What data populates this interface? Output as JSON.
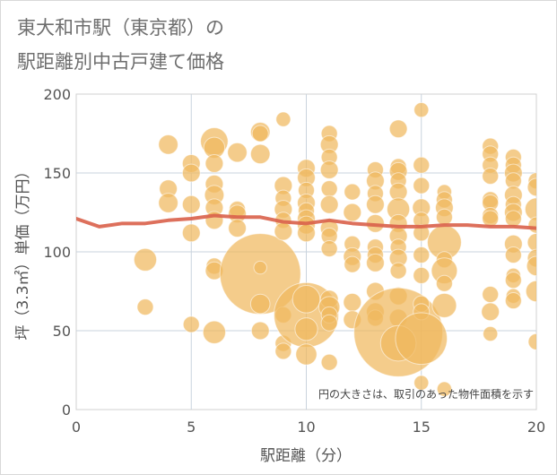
{
  "title_lines": [
    "東大和市駅（東京都）の",
    "駅距離別中古戸建て価格"
  ],
  "chart_data": {
    "type": "scatter",
    "title": "東大和市駅（東京都）の駅距離別中古戸建て価格",
    "xlabel": "駅距離（分）",
    "ylabel": "坪（3.3㎡）単価（万円）",
    "xlim": [
      0,
      20
    ],
    "ylim": [
      0,
      200
    ],
    "xticks": [
      "0",
      "5",
      "10",
      "15",
      "20"
    ],
    "yticks": [
      "0",
      "50",
      "100",
      "150",
      "200"
    ],
    "grid": true,
    "annotation": "円の大きさは、取引のあった物件面積を示す",
    "colors": {
      "bubble": "#f0b95e",
      "line": "#d9604a"
    },
    "line": {
      "x": [
        0,
        1,
        2,
        3,
        4,
        5,
        6,
        7,
        8,
        9,
        10,
        11,
        12,
        13,
        14,
        15,
        16,
        17,
        18,
        19,
        20
      ],
      "y": [
        121,
        116,
        118,
        118,
        120,
        121,
        123,
        122,
        122,
        119,
        118,
        120,
        118,
        117,
        116,
        116,
        117,
        117,
        116,
        116,
        115
      ]
    },
    "points": [
      {
        "x": 3,
        "y": 95,
        "s": 1.4
      },
      {
        "x": 3,
        "y": 65,
        "s": 1
      },
      {
        "x": 4,
        "y": 168,
        "s": 1.2
      },
      {
        "x": 4,
        "y": 140,
        "s": 1.1
      },
      {
        "x": 4,
        "y": 131,
        "s": 1.2
      },
      {
        "x": 5,
        "y": 156,
        "s": 1.1
      },
      {
        "x": 5,
        "y": 150,
        "s": 1.1
      },
      {
        "x": 5,
        "y": 130,
        "s": 1.1
      },
      {
        "x": 5,
        "y": 112,
        "s": 1.1
      },
      {
        "x": 5,
        "y": 54,
        "s": 1
      },
      {
        "x": 6,
        "y": 170,
        "s": 1.7
      },
      {
        "x": 6,
        "y": 166,
        "s": 1.3
      },
      {
        "x": 6,
        "y": 156,
        "s": 1.1
      },
      {
        "x": 6,
        "y": 143,
        "s": 1.1
      },
      {
        "x": 6,
        "y": 136,
        "s": 1.2
      },
      {
        "x": 6,
        "y": 128,
        "s": 1.1
      },
      {
        "x": 6,
        "y": 120,
        "s": 1.1
      },
      {
        "x": 6,
        "y": 91,
        "s": 1
      },
      {
        "x": 6,
        "y": 88,
        "s": 1.1
      },
      {
        "x": 6,
        "y": 49,
        "s": 1.4
      },
      {
        "x": 7,
        "y": 163,
        "s": 1.2
      },
      {
        "x": 7,
        "y": 127,
        "s": 1
      },
      {
        "x": 7,
        "y": 124,
        "s": 1.1
      },
      {
        "x": 7,
        "y": 115,
        "s": 1.1
      },
      {
        "x": 8,
        "y": 176,
        "s": 1.2
      },
      {
        "x": 8,
        "y": 175,
        "s": 1
      },
      {
        "x": 8,
        "y": 162,
        "s": 1.2
      },
      {
        "x": 8,
        "y": 86,
        "s": 5
      },
      {
        "x": 8,
        "y": 90,
        "s": 0.8
      },
      {
        "x": 8,
        "y": 67,
        "s": 1.2
      },
      {
        "x": 8,
        "y": 50,
        "s": 1.1
      },
      {
        "x": 9,
        "y": 184,
        "s": 0.9
      },
      {
        "x": 9,
        "y": 142,
        "s": 1.1
      },
      {
        "x": 9,
        "y": 134,
        "s": 1
      },
      {
        "x": 9,
        "y": 127,
        "s": 1.1
      },
      {
        "x": 9,
        "y": 120,
        "s": 1
      },
      {
        "x": 9,
        "y": 113,
        "s": 1.1
      },
      {
        "x": 9,
        "y": 60,
        "s": 1
      },
      {
        "x": 9,
        "y": 42,
        "s": 1
      },
      {
        "x": 9,
        "y": 37,
        "s": 1
      },
      {
        "x": 10,
        "y": 153,
        "s": 1.1
      },
      {
        "x": 10,
        "y": 147,
        "s": 1.1
      },
      {
        "x": 10,
        "y": 139,
        "s": 1
      },
      {
        "x": 10,
        "y": 131,
        "s": 1.1
      },
      {
        "x": 10,
        "y": 126,
        "s": 1
      },
      {
        "x": 10,
        "y": 121,
        "s": 1.1
      },
      {
        "x": 10,
        "y": 117,
        "s": 1.1
      },
      {
        "x": 10,
        "y": 112,
        "s": 1.1
      },
      {
        "x": 10,
        "y": 60,
        "s": 4
      },
      {
        "x": 10,
        "y": 70,
        "s": 1.7
      },
      {
        "x": 10,
        "y": 51,
        "s": 1.4
      },
      {
        "x": 10,
        "y": 35,
        "s": 1.3
      },
      {
        "x": 11,
        "y": 175,
        "s": 1
      },
      {
        "x": 11,
        "y": 168,
        "s": 1.1
      },
      {
        "x": 11,
        "y": 160,
        "s": 1
      },
      {
        "x": 11,
        "y": 152,
        "s": 1.1
      },
      {
        "x": 11,
        "y": 140,
        "s": 1
      },
      {
        "x": 11,
        "y": 130,
        "s": 1.1
      },
      {
        "x": 11,
        "y": 115,
        "s": 1.1
      },
      {
        "x": 11,
        "y": 110,
        "s": 1
      },
      {
        "x": 11,
        "y": 102,
        "s": 1
      },
      {
        "x": 11,
        "y": 70,
        "s": 1.1
      },
      {
        "x": 11,
        "y": 65,
        "s": 1.3
      },
      {
        "x": 11,
        "y": 60,
        "s": 1
      },
      {
        "x": 11,
        "y": 55,
        "s": 1
      },
      {
        "x": 11,
        "y": 30,
        "s": 1
      },
      {
        "x": 12,
        "y": 138,
        "s": 1
      },
      {
        "x": 12,
        "y": 125,
        "s": 1.1
      },
      {
        "x": 12,
        "y": 105,
        "s": 1
      },
      {
        "x": 12,
        "y": 97,
        "s": 1.1
      },
      {
        "x": 12,
        "y": 92,
        "s": 1
      },
      {
        "x": 12,
        "y": 68,
        "s": 1.1
      },
      {
        "x": 12,
        "y": 57,
        "s": 1.1
      },
      {
        "x": 13,
        "y": 152,
        "s": 1
      },
      {
        "x": 13,
        "y": 145,
        "s": 1.1
      },
      {
        "x": 13,
        "y": 137,
        "s": 1
      },
      {
        "x": 13,
        "y": 130,
        "s": 1.1
      },
      {
        "x": 13,
        "y": 118,
        "s": 1.1
      },
      {
        "x": 13,
        "y": 103,
        "s": 1
      },
      {
        "x": 13,
        "y": 98,
        "s": 1
      },
      {
        "x": 13,
        "y": 93,
        "s": 1.1
      },
      {
        "x": 13,
        "y": 75,
        "s": 1.1
      },
      {
        "x": 13,
        "y": 62,
        "s": 1.1
      },
      {
        "x": 13,
        "y": 58,
        "s": 1
      },
      {
        "x": 14,
        "y": 178,
        "s": 1.1
      },
      {
        "x": 14,
        "y": 154,
        "s": 1
      },
      {
        "x": 14,
        "y": 151,
        "s": 1.1
      },
      {
        "x": 14,
        "y": 145,
        "s": 1
      },
      {
        "x": 14,
        "y": 138,
        "s": 1.1
      },
      {
        "x": 14,
        "y": 127,
        "s": 1.4
      },
      {
        "x": 14,
        "y": 118,
        "s": 1.1
      },
      {
        "x": 14,
        "y": 110,
        "s": 1.1
      },
      {
        "x": 14,
        "y": 103,
        "s": 1
      },
      {
        "x": 14,
        "y": 96,
        "s": 1.1
      },
      {
        "x": 14,
        "y": 88,
        "s": 1
      },
      {
        "x": 14,
        "y": 72,
        "s": 1.1
      },
      {
        "x": 14,
        "y": 58,
        "s": 1.1
      },
      {
        "x": 14,
        "y": 49,
        "s": 5.5
      },
      {
        "x": 14,
        "y": 42,
        "s": 2.2
      },
      {
        "x": 15,
        "y": 190,
        "s": 0.9
      },
      {
        "x": 15,
        "y": 155,
        "s": 1
      },
      {
        "x": 15,
        "y": 142,
        "s": 1
      },
      {
        "x": 15,
        "y": 128,
        "s": 1.1
      },
      {
        "x": 15,
        "y": 120,
        "s": 1
      },
      {
        "x": 15,
        "y": 112,
        "s": 1
      },
      {
        "x": 15,
        "y": 98,
        "s": 1
      },
      {
        "x": 15,
        "y": 85,
        "s": 1
      },
      {
        "x": 15,
        "y": 67,
        "s": 1
      },
      {
        "x": 15,
        "y": 62,
        "s": 1
      },
      {
        "x": 15,
        "y": 45,
        "s": 3.2
      },
      {
        "x": 15,
        "y": 17,
        "s": 0.9
      },
      {
        "x": 16,
        "y": 138,
        "s": 0.9
      },
      {
        "x": 16,
        "y": 133,
        "s": 1
      },
      {
        "x": 16,
        "y": 128,
        "s": 1.1
      },
      {
        "x": 16,
        "y": 122,
        "s": 1
      },
      {
        "x": 16,
        "y": 106,
        "s": 2.1
      },
      {
        "x": 16,
        "y": 95,
        "s": 1
      },
      {
        "x": 16,
        "y": 88,
        "s": 1.6
      },
      {
        "x": 16,
        "y": 80,
        "s": 1
      },
      {
        "x": 16,
        "y": 66,
        "s": 1.5
      },
      {
        "x": 16,
        "y": 13,
        "s": 0.9
      },
      {
        "x": 18,
        "y": 167,
        "s": 1
      },
      {
        "x": 18,
        "y": 162,
        "s": 1
      },
      {
        "x": 18,
        "y": 155,
        "s": 1
      },
      {
        "x": 18,
        "y": 148,
        "s": 1
      },
      {
        "x": 18,
        "y": 133,
        "s": 1
      },
      {
        "x": 18,
        "y": 131,
        "s": 1
      },
      {
        "x": 18,
        "y": 123,
        "s": 1
      },
      {
        "x": 18,
        "y": 121,
        "s": 1
      },
      {
        "x": 18,
        "y": 73,
        "s": 1
      },
      {
        "x": 18,
        "y": 62,
        "s": 1.1
      },
      {
        "x": 18,
        "y": 48,
        "s": 0.9
      },
      {
        "x": 19,
        "y": 160,
        "s": 1
      },
      {
        "x": 19,
        "y": 155,
        "s": 1
      },
      {
        "x": 19,
        "y": 150,
        "s": 1.1
      },
      {
        "x": 19,
        "y": 145,
        "s": 1
      },
      {
        "x": 19,
        "y": 136,
        "s": 1.1
      },
      {
        "x": 19,
        "y": 130,
        "s": 1
      },
      {
        "x": 19,
        "y": 125,
        "s": 1.1
      },
      {
        "x": 19,
        "y": 121,
        "s": 1
      },
      {
        "x": 19,
        "y": 105,
        "s": 1.1
      },
      {
        "x": 19,
        "y": 98,
        "s": 1
      },
      {
        "x": 19,
        "y": 85,
        "s": 0.9
      },
      {
        "x": 19,
        "y": 82,
        "s": 1
      },
      {
        "x": 19,
        "y": 72,
        "s": 0.9
      },
      {
        "x": 19,
        "y": 69,
        "s": 1
      },
      {
        "x": 20,
        "y": 145,
        "s": 1
      },
      {
        "x": 20,
        "y": 141,
        "s": 1.1
      },
      {
        "x": 20,
        "y": 127,
        "s": 1.4
      },
      {
        "x": 20,
        "y": 117,
        "s": 1
      },
      {
        "x": 20,
        "y": 106,
        "s": 1.1
      },
      {
        "x": 20,
        "y": 96,
        "s": 1.1
      },
      {
        "x": 20,
        "y": 91,
        "s": 1.2
      },
      {
        "x": 20,
        "y": 75,
        "s": 1.3
      },
      {
        "x": 20,
        "y": 43,
        "s": 1
      }
    ]
  }
}
